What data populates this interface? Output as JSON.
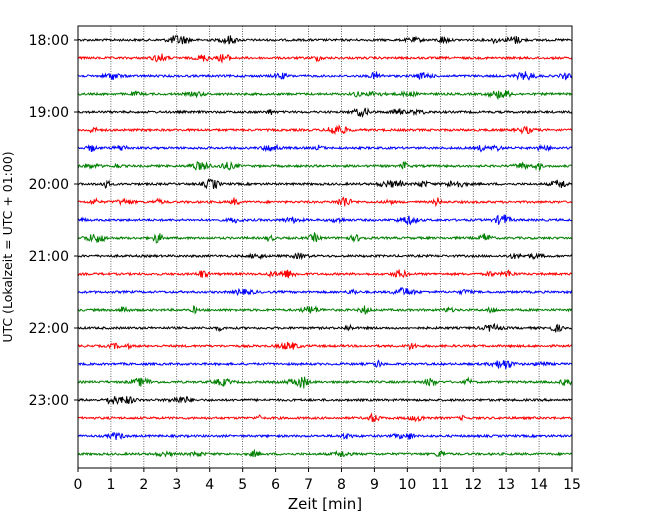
{
  "chart_data": {
    "type": "line",
    "title": "",
    "xlabel": "Zeit  [min]",
    "ylabel": "UTC (Lokalzeit = UTC + 01:00)",
    "x_ticks": [
      "0",
      "1",
      "2",
      "3",
      "4",
      "5",
      "6",
      "7",
      "8",
      "9",
      "10",
      "11",
      "12",
      "13",
      "14",
      "15"
    ],
    "xlim": [
      0,
      15
    ],
    "y_tick_labels": [
      "18:00",
      "19:00",
      "20:00",
      "21:00",
      "22:00",
      "23:00"
    ],
    "trace_interval_minutes": 15,
    "trace_start": "18:00",
    "trace_count": 24,
    "trace_colors": [
      "#000000",
      "#ff0000",
      "#0000ff",
      "#008000"
    ],
    "vertical_grid": "dotted",
    "traces": [
      {
        "start": "18:00",
        "color": "#000000"
      },
      {
        "start": "18:15",
        "color": "#ff0000"
      },
      {
        "start": "18:30",
        "color": "#0000ff"
      },
      {
        "start": "18:45",
        "color": "#008000"
      },
      {
        "start": "19:00",
        "color": "#000000"
      },
      {
        "start": "19:15",
        "color": "#ff0000"
      },
      {
        "start": "19:30",
        "color": "#0000ff"
      },
      {
        "start": "19:45",
        "color": "#008000"
      },
      {
        "start": "20:00",
        "color": "#000000"
      },
      {
        "start": "20:15",
        "color": "#ff0000"
      },
      {
        "start": "20:30",
        "color": "#0000ff"
      },
      {
        "start": "20:45",
        "color": "#008000"
      },
      {
        "start": "21:00",
        "color": "#000000"
      },
      {
        "start": "21:15",
        "color": "#ff0000"
      },
      {
        "start": "21:30",
        "color": "#0000ff"
      },
      {
        "start": "21:45",
        "color": "#008000"
      },
      {
        "start": "22:00",
        "color": "#000000"
      },
      {
        "start": "22:15",
        "color": "#ff0000"
      },
      {
        "start": "22:30",
        "color": "#0000ff"
      },
      {
        "start": "22:45",
        "color": "#008000"
      },
      {
        "start": "23:00",
        "color": "#000000"
      },
      {
        "start": "23:15",
        "color": "#ff0000"
      },
      {
        "start": "23:30",
        "color": "#0000ff"
      },
      {
        "start": "23:45",
        "color": "#008000"
      }
    ]
  }
}
